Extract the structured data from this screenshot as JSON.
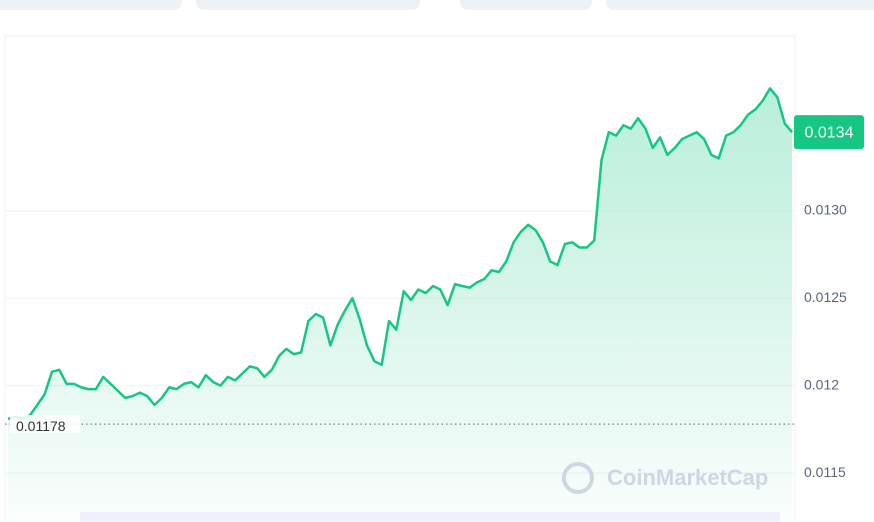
{
  "chart_data": {
    "type": "line",
    "series": [
      {
        "color": "#16c784",
        "values": [
          0.01181,
          0.01182,
          0.01181,
          0.01183,
          0.01189,
          0.01195,
          0.01208,
          0.01209,
          0.01201,
          0.01201,
          0.01199,
          0.01198,
          0.01198,
          0.01205,
          0.01201,
          0.01197,
          0.01193,
          0.01194,
          0.01196,
          0.01194,
          0.01189,
          0.01193,
          0.01199,
          0.01198,
          0.01201,
          0.01202,
          0.01199,
          0.01206,
          0.01202,
          0.012,
          0.01205,
          0.01203,
          0.01207,
          0.01211,
          0.0121,
          0.01205,
          0.01209,
          0.01217,
          0.01221,
          0.01218,
          0.01219,
          0.01237,
          0.01241,
          0.01239,
          0.01223,
          0.01235,
          0.01243,
          0.0125,
          0.01238,
          0.01223,
          0.01214,
          0.01212,
          0.01237,
          0.01232,
          0.01254,
          0.01249,
          0.01255,
          0.01253,
          0.01257,
          0.01255,
          0.01246,
          0.01258,
          0.01257,
          0.01256,
          0.01259,
          0.01261,
          0.01266,
          0.01265,
          0.01271,
          0.01282,
          0.01288,
          0.01292,
          0.01289,
          0.01282,
          0.01271,
          0.01269,
          0.01281,
          0.01282,
          0.01279,
          0.01279,
          0.01283,
          0.01329,
          0.01345,
          0.01343,
          0.01349,
          0.01347,
          0.01353,
          0.01347,
          0.01336,
          0.01342,
          0.01332,
          0.01336,
          0.01341,
          0.01343,
          0.01345,
          0.01341,
          0.01332,
          0.0133,
          0.01343,
          0.01345,
          0.01349,
          0.01355,
          0.01358,
          0.01363,
          0.0137,
          0.01365,
          0.0135,
          0.01345
        ]
      }
    ],
    "ylim": [
      0.01122,
      0.014
    ],
    "yticks": [
      0.0115,
      0.012,
      {
        "value": 0.0125,
        "label": "0.0125"
      },
      {
        "value": 0.013,
        "label": "0.0130"
      }
    ],
    "grid": true,
    "reference_line": {
      "value": 0.01178,
      "label": "0.01178"
    },
    "current_price": {
      "value": 0.01345,
      "label": "0.0134"
    },
    "watermark": "CoinMarketCap"
  }
}
